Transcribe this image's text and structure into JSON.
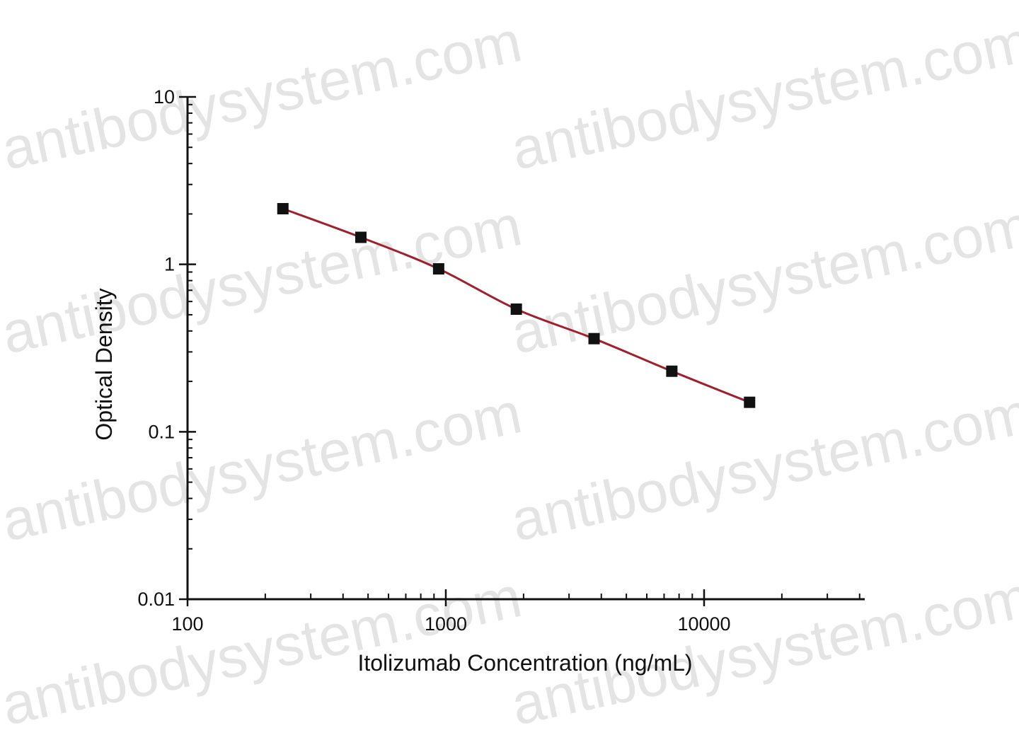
{
  "watermark": {
    "text": "antibodysystem.com"
  },
  "chart_data": {
    "type": "scatter",
    "xlabel": "Itolizumab Concentration (ng/mL)",
    "ylabel": "Optical Density",
    "xscale": "log",
    "yscale": "log",
    "xlim": [
      100,
      60000
    ],
    "ylim": [
      0.01,
      10
    ],
    "xticks": [
      100,
      1000,
      10000
    ],
    "xtick_labels": [
      "100",
      "1000",
      "10000"
    ],
    "yticks": [
      0.01,
      0.1,
      1,
      10
    ],
    "ytick_labels": [
      "0.01",
      "0.1",
      "1",
      "10"
    ],
    "grid": false,
    "legend": "none",
    "series": [
      {
        "marker": "square",
        "marker_color": "#111111",
        "line_color": "#a0202c",
        "fit": "smooth curve",
        "x": [
          234,
          469,
          938,
          1875,
          3750,
          7500,
          15000
        ],
        "y": [
          2.15,
          1.45,
          0.94,
          0.54,
          0.36,
          0.23,
          0.15
        ]
      }
    ]
  }
}
